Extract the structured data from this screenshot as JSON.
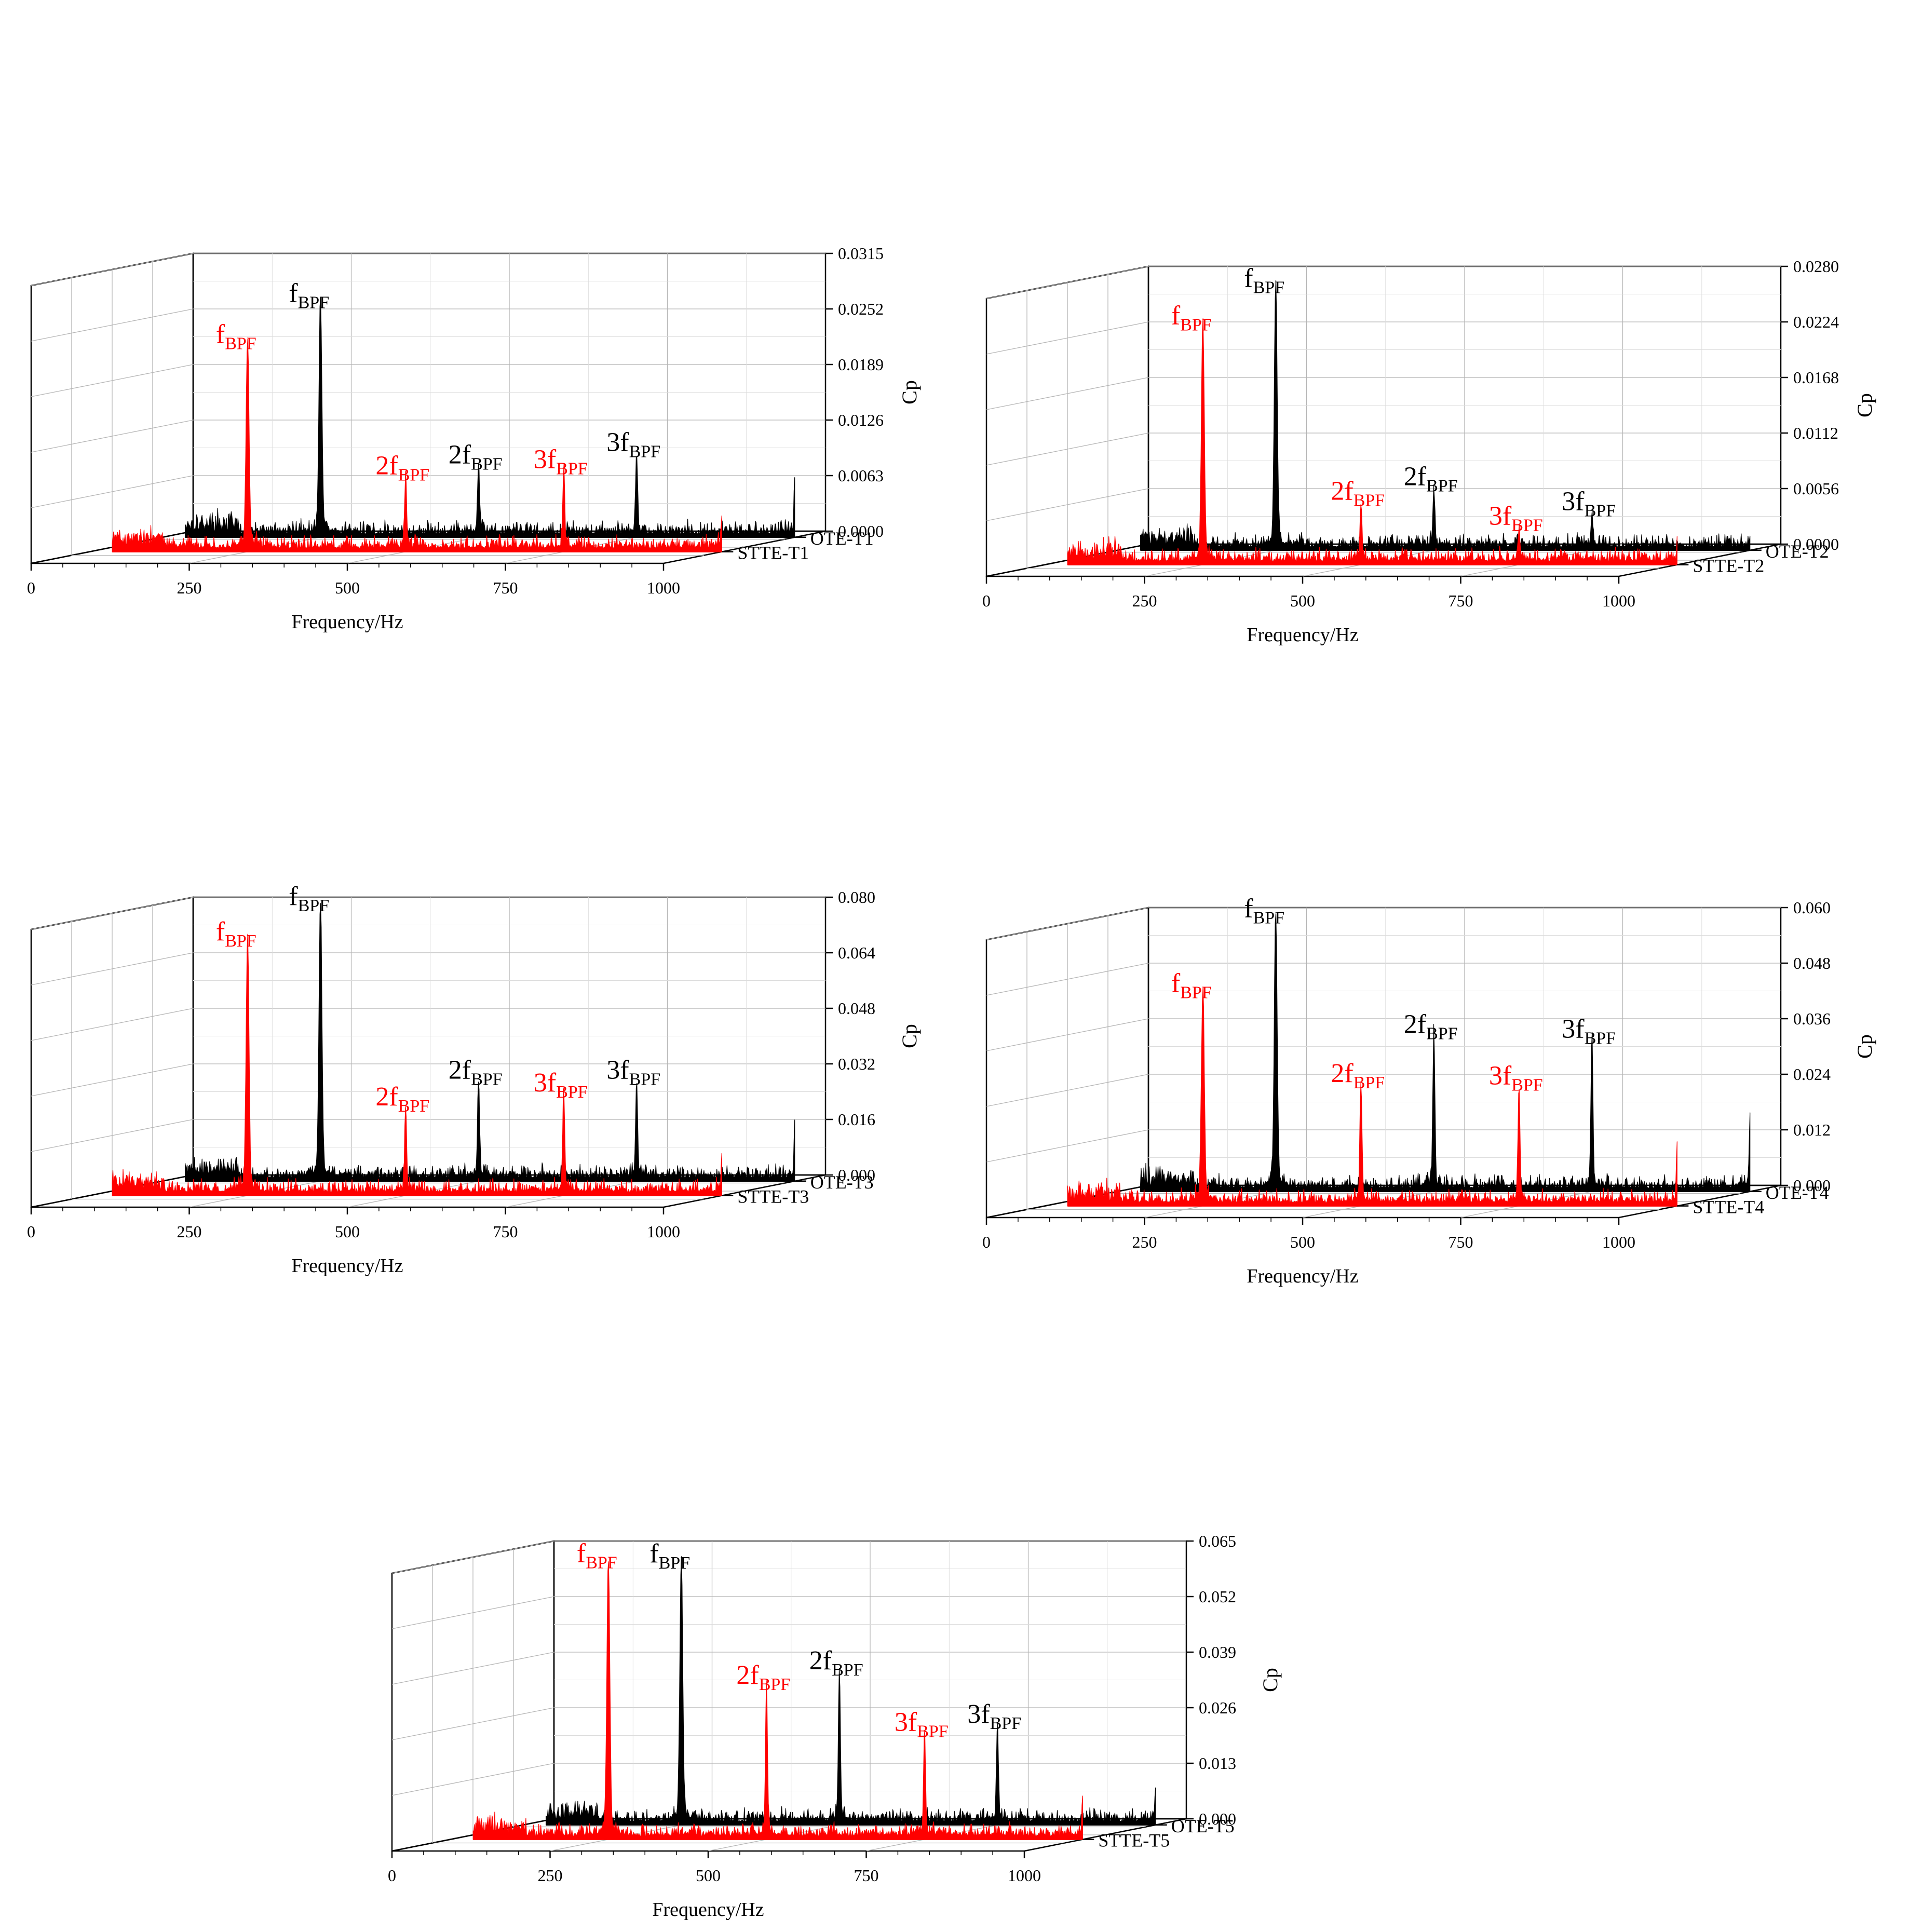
{
  "chart_data": [
    {
      "type": "area",
      "panel": 1,
      "xlabel": "Frequency/Hz",
      "ylabel": "Cp",
      "x_ticks": [
        "0",
        "250",
        "500",
        "750",
        "1000"
      ],
      "z_ticks": [
        "0.0315",
        "0.0252",
        "0.0189",
        "0.0126",
        "0.0063",
        "0.0000"
      ],
      "ylim": [
        0,
        0.0315
      ],
      "series": [
        {
          "name": "OTE-T1",
          "color": "#000000",
          "peaks": [
            {
              "freq": 250,
              "value": 0.0255,
              "label": "f",
              "sub": "BPF"
            },
            {
              "freq": 500,
              "value": 0.0072,
              "label": "2f",
              "sub": "BPF"
            },
            {
              "freq": 750,
              "value": 0.0086,
              "label": "3f",
              "sub": "BPF"
            },
            {
              "freq": 1000,
              "value": 0.006
            }
          ]
        },
        {
          "name": "STTE-T1",
          "color": "#ff0000",
          "peaks": [
            {
              "freq": 250,
              "value": 0.0225,
              "label": "f",
              "sub": "BPF"
            },
            {
              "freq": 500,
              "value": 0.0076,
              "label": "2f",
              "sub": "BPF"
            },
            {
              "freq": 750,
              "value": 0.0083,
              "label": "3f",
              "sub": "BPF"
            },
            {
              "freq": 1000,
              "value": 0.0035
            }
          ]
        }
      ]
    },
    {
      "type": "area",
      "panel": 2,
      "xlabel": "Frequency/Hz",
      "ylabel": "Cp",
      "x_ticks": [
        "0",
        "250",
        "500",
        "750",
        "1000"
      ],
      "z_ticks": [
        "0.0280",
        "0.0224",
        "0.0168",
        "0.0112",
        "0.0056",
        "0.0000"
      ],
      "ylim": [
        0,
        0.028
      ],
      "series": [
        {
          "name": "OTE-T2",
          "color": "#000000",
          "peaks": [
            {
              "freq": 250,
              "value": 0.0255,
              "label": "f",
              "sub": "BPF"
            },
            {
              "freq": 500,
              "value": 0.0055,
              "label": "2f",
              "sub": "BPF"
            },
            {
              "freq": 750,
              "value": 0.003,
              "label": "3f",
              "sub": "BPF"
            },
            {
              "freq": 1000,
              "value": 0.0008
            }
          ]
        },
        {
          "name": "STTE-T2",
          "color": "#ff0000",
          "peaks": [
            {
              "freq": 250,
              "value": 0.0232,
              "label": "f",
              "sub": "BPF"
            },
            {
              "freq": 500,
              "value": 0.0055,
              "label": "2f",
              "sub": "BPF"
            },
            {
              "freq": 750,
              "value": 0.003,
              "label": "3f",
              "sub": "BPF"
            },
            {
              "freq": 1000,
              "value": 0.0012
            }
          ]
        }
      ]
    },
    {
      "type": "area",
      "panel": 3,
      "xlabel": "Frequency/Hz",
      "ylabel": "Cp",
      "x_ticks": [
        "0",
        "250",
        "500",
        "750",
        "1000"
      ],
      "z_ticks": [
        "0.080",
        "0.064",
        "0.048",
        "0.032",
        "0.016",
        "0.000"
      ],
      "ylim": [
        0,
        0.08
      ],
      "series": [
        {
          "name": "OTE-T3",
          "color": "#000000",
          "peaks": [
            {
              "freq": 250,
              "value": 0.0765,
              "label": "f",
              "sub": "BPF"
            },
            {
              "freq": 500,
              "value": 0.0265,
              "label": "2f",
              "sub": "BPF"
            },
            {
              "freq": 750,
              "value": 0.0265,
              "label": "3f",
              "sub": "BPF"
            },
            {
              "freq": 1000,
              "value": 0.015
            }
          ]
        },
        {
          "name": "STTE-T3",
          "color": "#ff0000",
          "peaks": [
            {
              "freq": 250,
              "value": 0.0705,
              "label": "f",
              "sub": "BPF"
            },
            {
              "freq": 500,
              "value": 0.023,
              "label": "2f",
              "sub": "BPF"
            },
            {
              "freq": 750,
              "value": 0.027,
              "label": "3f",
              "sub": "BPF"
            },
            {
              "freq": 1000,
              "value": 0.01
            }
          ]
        }
      ]
    },
    {
      "type": "area",
      "panel": 4,
      "xlabel": "Frequency/Hz",
      "ylabel": "Cp",
      "x_ticks": [
        "0",
        "250",
        "500",
        "750",
        "1000"
      ],
      "z_ticks": [
        "0.060",
        "0.048",
        "0.036",
        "0.024",
        "0.012",
        "0.000"
      ],
      "ylim": [
        0,
        0.06
      ],
      "series": [
        {
          "name": "OTE-T4",
          "color": "#000000",
          "peaks": [
            {
              "freq": 250,
              "value": 0.057,
              "label": "f",
              "sub": "BPF"
            },
            {
              "freq": 500,
              "value": 0.032,
              "label": "2f",
              "sub": "BPF"
            },
            {
              "freq": 750,
              "value": 0.031,
              "label": "3f",
              "sub": "BPF"
            },
            {
              "freq": 1000,
              "value": 0.0155
            }
          ]
        },
        {
          "name": "STTE-T4",
          "color": "#ff0000",
          "peaks": [
            {
              "freq": 250,
              "value": 0.044,
              "label": "f",
              "sub": "BPF"
            },
            {
              "freq": 500,
              "value": 0.0245,
              "label": "2f",
              "sub": "BPF"
            },
            {
              "freq": 750,
              "value": 0.024,
              "label": "3f",
              "sub": "BPF"
            },
            {
              "freq": 1000,
              "value": 0.0115
            }
          ]
        }
      ]
    },
    {
      "type": "area",
      "panel": 5,
      "xlabel": "Frequency/Hz",
      "ylabel": "Cp",
      "x_ticks": [
        "0",
        "250",
        "500",
        "750",
        "1000"
      ],
      "z_ticks": [
        "0.065",
        "0.052",
        "0.039",
        "0.026",
        "0.013",
        "0.000"
      ],
      "ylim": [
        0,
        0.065
      ],
      "series": [
        {
          "name": "OTE-T5",
          "color": "#000000",
          "peaks": [
            {
              "freq": 250,
              "value": 0.059,
              "label": "f",
              "sub": "BPF"
            },
            {
              "freq": 500,
              "value": 0.034,
              "label": "2f",
              "sub": "BPF"
            },
            {
              "freq": 750,
              "value": 0.0215,
              "label": "3f",
              "sub": "BPF"
            },
            {
              "freq": 1000,
              "value": 0.0075
            }
          ]
        },
        {
          "name": "STTE-T5",
          "color": "#ff0000",
          "peaks": [
            {
              "freq": 250,
              "value": 0.0625,
              "label": "f",
              "sub": "BPF"
            },
            {
              "freq": 500,
              "value": 0.034,
              "label": "2f",
              "sub": "BPF"
            },
            {
              "freq": 750,
              "value": 0.023,
              "label": "3f",
              "sub": "BPF"
            },
            {
              "freq": 1000,
              "value": 0.0075
            }
          ]
        }
      ]
    }
  ]
}
